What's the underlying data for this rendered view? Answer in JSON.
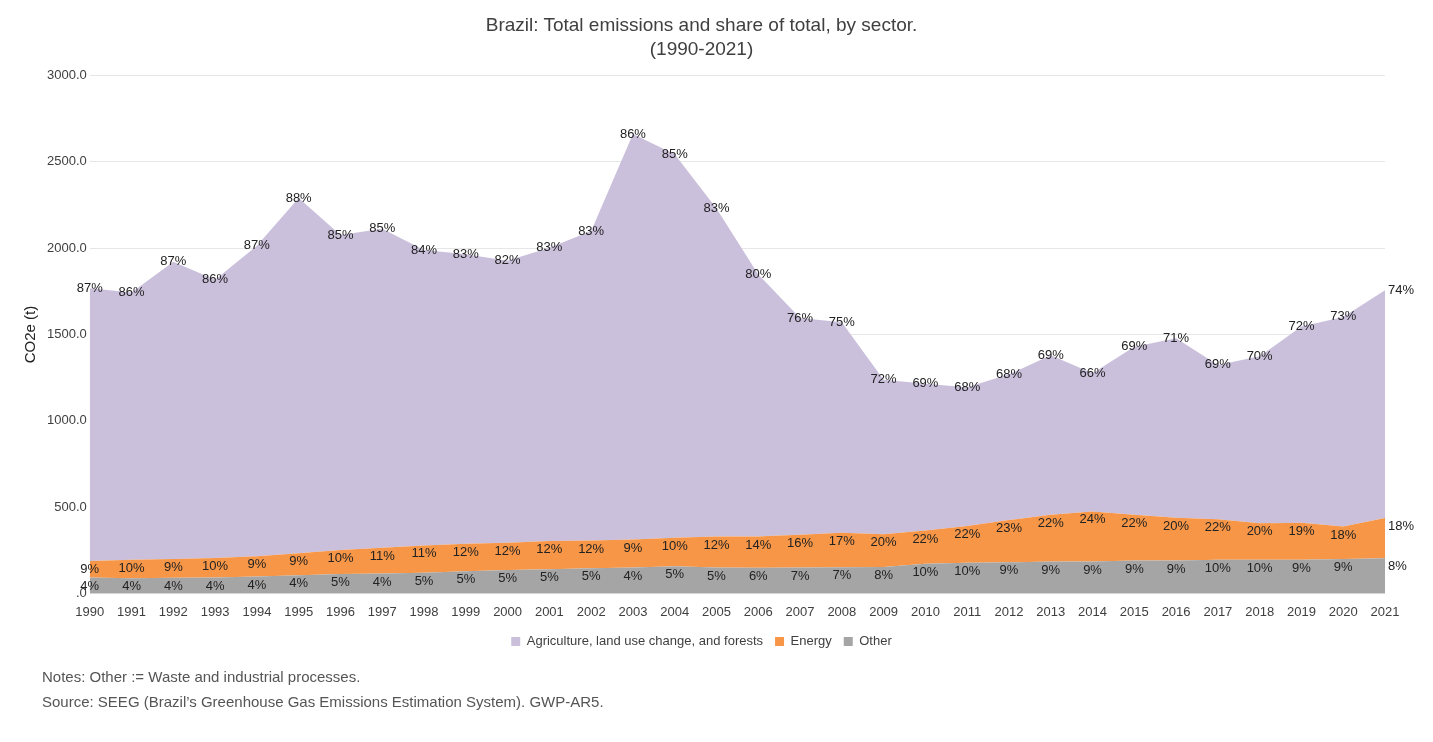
{
  "chart_data": {
    "type": "area",
    "title": "Brazil: Total emissions and share of total, by sector.",
    "subtitle": "(1990-2021)",
    "ylabel": "CO2e (t)",
    "categories": [
      "1990",
      "1991",
      "1992",
      "1993",
      "1994",
      "1995",
      "1996",
      "1997",
      "1998",
      "1999",
      "2000",
      "2001",
      "2002",
      "2003",
      "2004",
      "2005",
      "2006",
      "2007",
      "2008",
      "2009",
      "2010",
      "2011",
      "2012",
      "2013",
      "2014",
      "2015",
      "2016",
      "2017",
      "2018",
      "2019",
      "2020",
      "2021"
    ],
    "stacked": true,
    "series": [
      {
        "name": "Other",
        "color": "#a5a5a5",
        "values": [
          92,
          88,
          90,
          92,
          98,
          105,
          112,
          115,
          120,
          128,
          135,
          140,
          145,
          150,
          157,
          150,
          148,
          150,
          152,
          153,
          172,
          178,
          180,
          185,
          185,
          190,
          190,
          195,
          195,
          195,
          200,
          203
        ]
      },
      {
        "name": "Energy",
        "color": "#f79646",
        "values": [
          95,
          107,
          110,
          113,
          117,
          127,
          140,
          150,
          158,
          159,
          158,
          163,
          161,
          162,
          166,
          179,
          182,
          190,
          200,
          189,
          192,
          212,
          245,
          270,
          290,
          265,
          249,
          235,
          211,
          215,
          188,
          234
        ]
      },
      {
        "name": "Agriculture, land use change, and forests",
        "color": "#cbc0dc",
        "values": [
          1581,
          1548,
          1722,
          1612,
          1799,
          2059,
          1824,
          1848,
          1712,
          1678,
          1635,
          1699,
          1794,
          2349,
          2221,
          1901,
          1518,
          1256,
          1219,
          896,
          850,
          805,
          844,
          925,
          800,
          974,
          1039,
          894,
          968,
          1136,
          1214,
          1319
        ]
      }
    ],
    "ylim": [
      0,
      3000
    ],
    "yticks": [
      {
        "value": 0,
        "label": ".0"
      },
      {
        "value": 500,
        "label": "500.0"
      },
      {
        "value": 1000,
        "label": "1000.0"
      },
      {
        "value": 1500,
        "label": "1500.0"
      },
      {
        "value": 2000,
        "label": "2000.0"
      },
      {
        "value": 2500,
        "label": "2500.0"
      },
      {
        "value": 3000,
        "label": "3000.0"
      }
    ],
    "grid": "y",
    "legend": "bottom",
    "annotations": [
      "Notes: Other := Waste and industrial processes.",
      "Source: SEEG (Brazil’s Greenhouse Gas Emissions Estimation System). GWP-AR5.",
      {
        "text": "4%",
        "x": "1990",
        "y": 92
      },
      {
        "text": "4%",
        "x": "1991",
        "y": 88
      },
      {
        "text": "4%",
        "x": "1992",
        "y": 90
      },
      {
        "text": "4%",
        "x": "1993",
        "y": 92
      },
      {
        "text": "4%",
        "x": "1994",
        "y": 98
      },
      {
        "text": "4%",
        "x": "1995",
        "y": 105
      },
      {
        "text": "5%",
        "x": "1996",
        "y": 112
      },
      {
        "text": "4%",
        "x": "1997",
        "y": 115
      },
      {
        "text": "5%",
        "x": "1998",
        "y": 120
      },
      {
        "text": "5%",
        "x": "1999",
        "y": 128
      },
      {
        "text": "5%",
        "x": "2000",
        "y": 135
      },
      {
        "text": "5%",
        "x": "2001",
        "y": 140
      },
      {
        "text": "5%",
        "x": "2002",
        "y": 145
      },
      {
        "text": "4%",
        "x": "2003",
        "y": 150
      },
      {
        "text": "5%",
        "x": "2004",
        "y": 157
      },
      {
        "text": "5%",
        "x": "2005",
        "y": 150
      },
      {
        "text": "6%",
        "x": "2006",
        "y": 148
      },
      {
        "text": "7%",
        "x": "2007",
        "y": 150
      },
      {
        "text": "7%",
        "x": "2008",
        "y": 152
      },
      {
        "text": "8%",
        "x": "2009",
        "y": 153
      },
      {
        "text": "10%",
        "x": "2010",
        "y": 172
      },
      {
        "text": "10%",
        "x": "2011",
        "y": 178
      },
      {
        "text": "9%",
        "x": "2012",
        "y": 180
      },
      {
        "text": "9%",
        "x": "2013",
        "y": 185
      },
      {
        "text": "9%",
        "x": "2014",
        "y": 185
      },
      {
        "text": "9%",
        "x": "2015",
        "y": 190
      },
      {
        "text": "9%",
        "x": "2016",
        "y": 190
      },
      {
        "text": "10%",
        "x": "2017",
        "y": 195
      },
      {
        "text": "10%",
        "x": "2018",
        "y": 195
      },
      {
        "text": "9%",
        "x": "2019",
        "y": 195
      },
      {
        "text": "9%",
        "x": "2020",
        "y": 200
      },
      {
        "text": "8%",
        "x": "2021",
        "y": 203
      },
      {
        "text": "9%",
        "x": "1990",
        "y": 187
      },
      {
        "text": "10%",
        "x": "1991",
        "y": 195
      },
      {
        "text": "9%",
        "x": "1992",
        "y": 200
      },
      {
        "text": "10%",
        "x": "1993",
        "y": 205
      },
      {
        "text": "9%",
        "x": "1994",
        "y": 215
      },
      {
        "text": "9%",
        "x": "1995",
        "y": 232
      },
      {
        "text": "10%",
        "x": "1996",
        "y": 252
      },
      {
        "text": "11%",
        "x": "1997",
        "y": 265
      },
      {
        "text": "11%",
        "x": "1998",
        "y": 278
      },
      {
        "text": "12%",
        "x": "1999",
        "y": 287
      },
      {
        "text": "12%",
        "x": "2000",
        "y": 293
      },
      {
        "text": "12%",
        "x": "2001",
        "y": 303
      },
      {
        "text": "12%",
        "x": "2002",
        "y": 306
      },
      {
        "text": "9%",
        "x": "2003",
        "y": 312
      },
      {
        "text": "10%",
        "x": "2004",
        "y": 323
      },
      {
        "text": "12%",
        "x": "2005",
        "y": 329
      },
      {
        "text": "14%",
        "x": "2006",
        "y": 330
      },
      {
        "text": "16%",
        "x": "2007",
        "y": 340
      },
      {
        "text": "17%",
        "x": "2008",
        "y": 352
      },
      {
        "text": "20%",
        "x": "2009",
        "y": 342
      },
      {
        "text": "22%",
        "x": "2010",
        "y": 364
      },
      {
        "text": "22%",
        "x": "2011",
        "y": 390
      },
      {
        "text": "23%",
        "x": "2012",
        "y": 425
      },
      {
        "text": "22%",
        "x": "2013",
        "y": 455
      },
      {
        "text": "24%",
        "x": "2014",
        "y": 475
      },
      {
        "text": "22%",
        "x": "2015",
        "y": 455
      },
      {
        "text": "20%",
        "x": "2016",
        "y": 439
      },
      {
        "text": "22%",
        "x": "2017",
        "y": 430
      },
      {
        "text": "20%",
        "x": "2018",
        "y": 406
      },
      {
        "text": "19%",
        "x": "2019",
        "y": 410
      },
      {
        "text": "18%",
        "x": "2020",
        "y": 388
      },
      {
        "text": "18%",
        "x": "2021",
        "y": 437
      },
      {
        "text": "87%",
        "x": "1990",
        "y": 1768
      },
      {
        "text": "86%",
        "x": "1991",
        "y": 1743
      },
      {
        "text": "87%",
        "x": "1992",
        "y": 1922
      },
      {
        "text": "86%",
        "x": "1993",
        "y": 1817
      },
      {
        "text": "87%",
        "x": "1994",
        "y": 2014
      },
      {
        "text": "88%",
        "x": "1995",
        "y": 2291
      },
      {
        "text": "85%",
        "x": "1996",
        "y": 2076
      },
      {
        "text": "85%",
        "x": "1997",
        "y": 2113
      },
      {
        "text": "84%",
        "x": "1998",
        "y": 1990
      },
      {
        "text": "83%",
        "x": "1999",
        "y": 1965
      },
      {
        "text": "82%",
        "x": "2000",
        "y": 1928
      },
      {
        "text": "83%",
        "x": "2001",
        "y": 2002
      },
      {
        "text": "83%",
        "x": "2002",
        "y": 2100
      },
      {
        "text": "86%",
        "x": "2003",
        "y": 2661
      },
      {
        "text": "85%",
        "x": "2004",
        "y": 2544
      },
      {
        "text": "83%",
        "x": "2005",
        "y": 2230
      },
      {
        "text": "80%",
        "x": "2006",
        "y": 1848
      },
      {
        "text": "76%",
        "x": "2007",
        "y": 1596
      },
      {
        "text": "75%",
        "x": "2008",
        "y": 1571
      },
      {
        "text": "72%",
        "x": "2009",
        "y": 1238
      },
      {
        "text": "69%",
        "x": "2010",
        "y": 1214
      },
      {
        "text": "68%",
        "x": "2011",
        "y": 1195
      },
      {
        "text": "68%",
        "x": "2012",
        "y": 1269
      },
      {
        "text": "69%",
        "x": "2013",
        "y": 1380
      },
      {
        "text": "66%",
        "x": "2014",
        "y": 1275
      },
      {
        "text": "69%",
        "x": "2015",
        "y": 1429
      },
      {
        "text": "71%",
        "x": "2016",
        "y": 1478
      },
      {
        "text": "69%",
        "x": "2017",
        "y": 1324
      },
      {
        "text": "70%",
        "x": "2018",
        "y": 1374
      },
      {
        "text": "72%",
        "x": "2019",
        "y": 1546
      },
      {
        "text": "73%",
        "x": "2020",
        "y": 1602
      },
      {
        "text": "74%",
        "x": "2021",
        "y": 1756
      }
    ]
  }
}
